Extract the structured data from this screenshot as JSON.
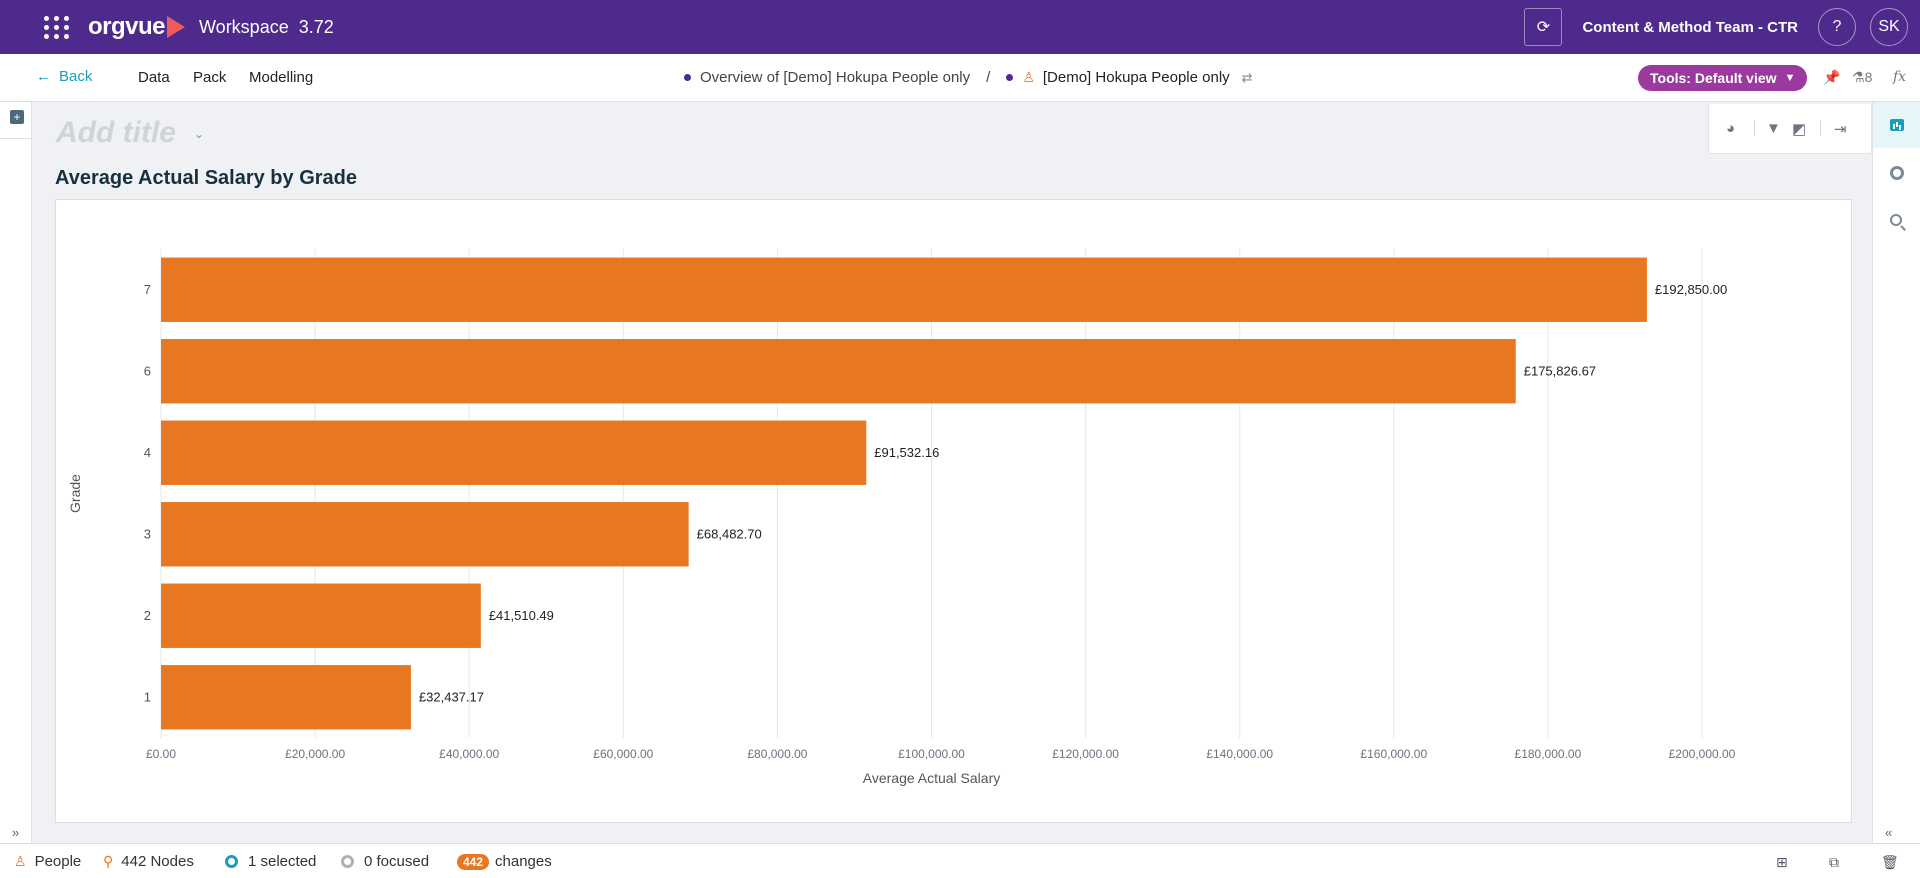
{
  "topbar": {
    "brand": "orgvue",
    "workspace_label": "Workspace",
    "workspace_version": "3.72",
    "team": "Content & Method Team - CTR",
    "help": "?",
    "avatar": "SK"
  },
  "navbar": {
    "back": "Back",
    "items": [
      "Data",
      "Pack",
      "Modelling"
    ],
    "breadcrumb_1": "Overview of [Demo] Hokupa People only",
    "breadcrumb_sep": "/",
    "breadcrumb_2": "[Demo] Hokupa People only",
    "tools_label": "Tools: Default view",
    "flask_count": "8",
    "fx": "fx"
  },
  "view": {
    "add_title_placeholder": "Add title"
  },
  "colors": {
    "purple": "#4d2a8c",
    "bar": "#e87722",
    "accent": "#1a9dbb",
    "tools_pill": "#9b3a9e"
  },
  "chart_data": {
    "type": "bar",
    "orientation": "horizontal",
    "title": "Average Actual Salary by Grade",
    "xlabel": "Average Actual Salary",
    "ylabel": "Grade",
    "categories": [
      "7",
      "6",
      "4",
      "3",
      "2",
      "1"
    ],
    "values": [
      192850.0,
      175826.67,
      91532.16,
      68482.7,
      41510.49,
      32437.17
    ],
    "data_labels": [
      "£192,850.00",
      "£175,826.67",
      "£91,532.16",
      "£68,482.70",
      "£41,510.49",
      "£32,437.17"
    ],
    "xlim": [
      0,
      200000
    ],
    "x_ticks": [
      0,
      20000,
      40000,
      60000,
      80000,
      100000,
      120000,
      140000,
      160000,
      180000,
      200000
    ],
    "x_tick_labels": [
      "£0.00",
      "£20,000.00",
      "£40,000.00",
      "£60,000.00",
      "£80,000.00",
      "£100,000.00",
      "£120,000.00",
      "£140,000.00",
      "£160,000.00",
      "£180,000.00",
      "£200,000.00"
    ],
    "grid": true
  },
  "status": {
    "dataset": "People",
    "nodes": "442 Nodes",
    "selected": "1 selected",
    "focused": "0 focused",
    "changes_count": "442",
    "changes_label": "changes"
  }
}
